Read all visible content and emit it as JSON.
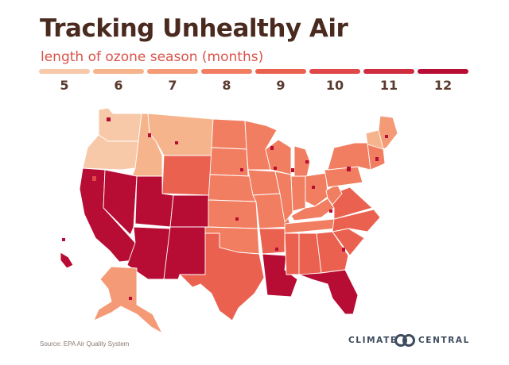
{
  "title": "Tracking Unhealthy Air",
  "subtitle": "length of ozone season (months)",
  "legend": [
    {
      "label": "5",
      "color": "#f7c9a9"
    },
    {
      "label": "6",
      "color": "#f6b48d"
    },
    {
      "label": "7",
      "color": "#f59a76"
    },
    {
      "label": "8",
      "color": "#f17e61"
    },
    {
      "label": "9",
      "color": "#eb6150"
    },
    {
      "label": "10",
      "color": "#e04748"
    },
    {
      "label": "11",
      "color": "#cf2c3f"
    },
    {
      "label": "12",
      "color": "#b70c34"
    }
  ],
  "source": "Source: EPA Air Quality System",
  "brand": {
    "left": "CLIMATE",
    "right": "CENTRAL",
    "logo": "double-ring-logo-icon",
    "color": "#3d4b5e"
  }
}
